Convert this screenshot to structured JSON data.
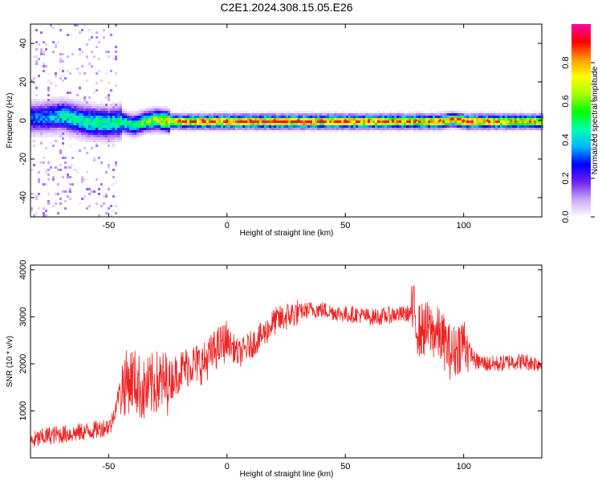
{
  "chart_data": [
    {
      "type": "heatmap",
      "title": "C2E1.2024.308.15.05.E26",
      "xlabel": "Height of straight line (km)",
      "ylabel": "Frequency (Hz)",
      "xlim": [
        -83,
        133
      ],
      "ylim": [
        -50,
        50
      ],
      "xticks": [
        "-50",
        "0",
        "50",
        "100"
      ],
      "xtick_values": [
        -50,
        0,
        50,
        100
      ],
      "yticks": [
        "-40",
        "-20",
        "0",
        "20",
        "40"
      ],
      "ytick_values": [
        -40,
        -20,
        0,
        20,
        40
      ],
      "colorbar": {
        "label": "Normalized spectral amplitude",
        "range": [
          0,
          1
        ],
        "ticks": [
          "0.0",
          "0.2",
          "0.4",
          "0.6",
          "0.8"
        ],
        "tick_values": [
          0.0,
          0.2,
          0.4,
          0.6,
          0.8
        ],
        "colors": [
          "#ffffff",
          "#c9a6f5",
          "#6f1ff0",
          "#0000ff",
          "#00b7ff",
          "#00ffb0",
          "#00ff00",
          "#a6ff00",
          "#ffff00",
          "#ff9900",
          "#ff0000",
          "#ff00a8"
        ]
      },
      "ridge": {
        "description_of_trend": "spectral ridge near 0 Hz across heights",
        "x": [
          -80,
          -70,
          -60,
          -50,
          -45,
          -40,
          -35,
          -30,
          -25,
          -20,
          -10,
          0,
          10,
          20,
          30,
          40,
          50,
          60,
          70,
          80,
          90,
          95,
          100,
          110,
          120,
          133
        ],
        "freq": [
          2,
          3,
          0,
          -1,
          0,
          -2,
          0,
          1,
          0,
          0,
          0,
          0,
          0,
          0,
          0,
          0,
          0,
          0,
          0,
          0,
          0,
          1,
          0,
          0,
          0,
          0
        ],
        "peak_amplitude": [
          0.35,
          0.45,
          0.5,
          0.5,
          0.5,
          0.55,
          0.6,
          0.7,
          0.8,
          0.9,
          0.95,
          0.95,
          0.95,
          0.95,
          0.95,
          0.95,
          0.95,
          0.9,
          0.9,
          0.9,
          0.9,
          0.9,
          0.95,
          0.9,
          0.85,
          0.8
        ]
      }
    },
    {
      "type": "line",
      "title": "",
      "xlabel": "Height of straight line (km)",
      "ylabel": "SNR (10 * v/v)",
      "xlim": [
        -83,
        133
      ],
      "ylim": [
        0,
        4100
      ],
      "xticks": [
        "-50",
        "0",
        "50",
        "100"
      ],
      "xtick_values": [
        -50,
        0,
        50,
        100
      ],
      "yticks": [
        "1000",
        "2000",
        "3000",
        "4000"
      ],
      "ytick_values": [
        1000,
        2000,
        3000,
        4000
      ],
      "series": [
        {
          "color": "#ee2222",
          "x": [
            -83,
            -75,
            -65,
            -55,
            -49,
            -45,
            -40,
            -35,
            -30,
            -25,
            -20,
            -15,
            -10,
            -5,
            0,
            5,
            10,
            15,
            20,
            25,
            30,
            35,
            40,
            45,
            50,
            55,
            60,
            65,
            70,
            75,
            79,
            81,
            85,
            90,
            95,
            100,
            105,
            110,
            115,
            120,
            125,
            133
          ],
          "y": [
            350,
            480,
            520,
            600,
            700,
            1500,
            1700,
            1400,
            1600,
            1600,
            1850,
            2000,
            2000,
            2300,
            2500,
            2200,
            2400,
            2600,
            2900,
            3000,
            3100,
            3150,
            3150,
            3100,
            3050,
            3050,
            3000,
            3000,
            3050,
            3050,
            3100,
            2700,
            2750,
            2600,
            2200,
            2500,
            2050,
            2000,
            2000,
            2050,
            2050,
            2000
          ]
        }
      ]
    }
  ]
}
